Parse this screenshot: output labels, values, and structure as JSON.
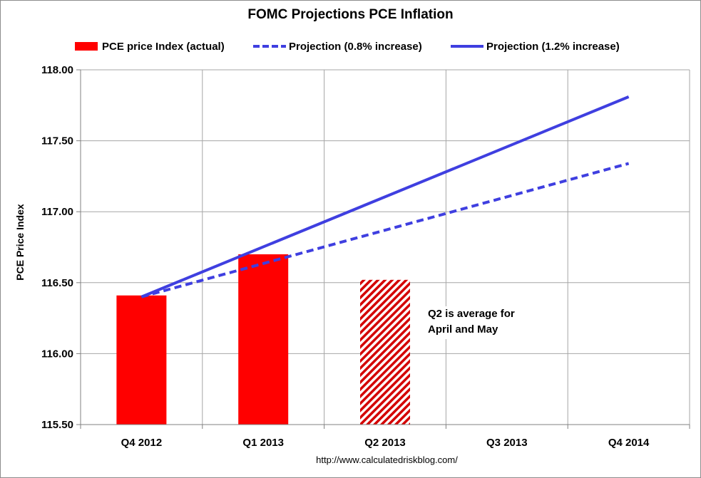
{
  "title": "FOMC Projections PCE Inflation",
  "source": "http://www.calculatedriskblog.com/",
  "note": "Q2 is average for April and May",
  "colors": {
    "actual_bar": "#ff0000",
    "projection_line": "#3f3fe0",
    "grid": "#a6a6a6"
  },
  "chart_data": {
    "type": "bar",
    "title": "FOMC Projections PCE Inflation",
    "ylabel": "PCE Price Index",
    "xlabel": "",
    "categories": [
      "Q4 2012",
      "Q1 2013",
      "Q2 2013",
      "Q3 2013",
      "Q4 2014"
    ],
    "ylim": [
      115.5,
      118.0
    ],
    "yticks": [
      "115.50",
      "116.00",
      "116.50",
      "117.00",
      "117.50",
      "118.00"
    ],
    "grid": true,
    "legend_placement": "top",
    "series": [
      {
        "name": "PCE price Index (actual)",
        "kind": "bar",
        "values": [
          116.41,
          116.7,
          116.52,
          null,
          null
        ],
        "hatched": [
          false,
          false,
          true,
          false,
          false
        ]
      },
      {
        "name": "Projection (0.8% increase)",
        "kind": "line",
        "style": "dashed",
        "values": [
          116.4,
          null,
          null,
          null,
          117.34
        ]
      },
      {
        "name": "Projection (1.2% increase)",
        "kind": "line",
        "style": "solid",
        "values": [
          116.4,
          null,
          null,
          null,
          117.81
        ]
      }
    ]
  }
}
